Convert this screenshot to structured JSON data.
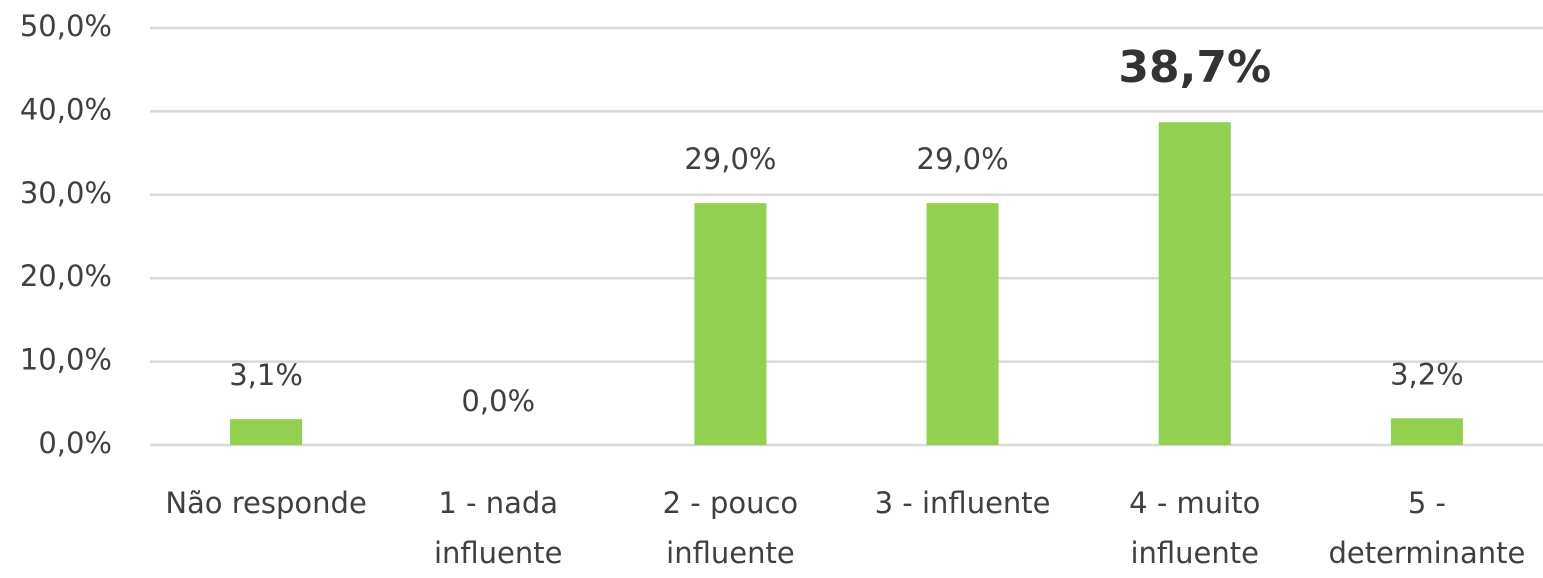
{
  "chart_data": {
    "type": "bar",
    "categories": [
      "Não responde",
      "1 - nada influente",
      "2 - pouco influente",
      "3 - influente",
      "4 - muito influente",
      "5 - determinante"
    ],
    "values": [
      3.1,
      0,
      29,
      29,
      38.7,
      3.2
    ],
    "value_labels": [
      "3,1%",
      "0,0%",
      "29,0%",
      "29,0%",
      "38,7%",
      "3,2%"
    ],
    "highlight_index": 4,
    "color": "#92d050",
    "ylim": [
      0,
      50
    ],
    "yticks": [
      {
        "value": 0,
        "label": "0,0%"
      },
      {
        "value": 10,
        "label": "10,0%"
      },
      {
        "value": 20,
        "label": "20,0%"
      },
      {
        "value": 30,
        "label": "30,0%"
      },
      {
        "value": 40,
        "label": "40,0%"
      },
      {
        "value": 50,
        "label": "50,0%"
      }
    ],
    "grid": true
  }
}
